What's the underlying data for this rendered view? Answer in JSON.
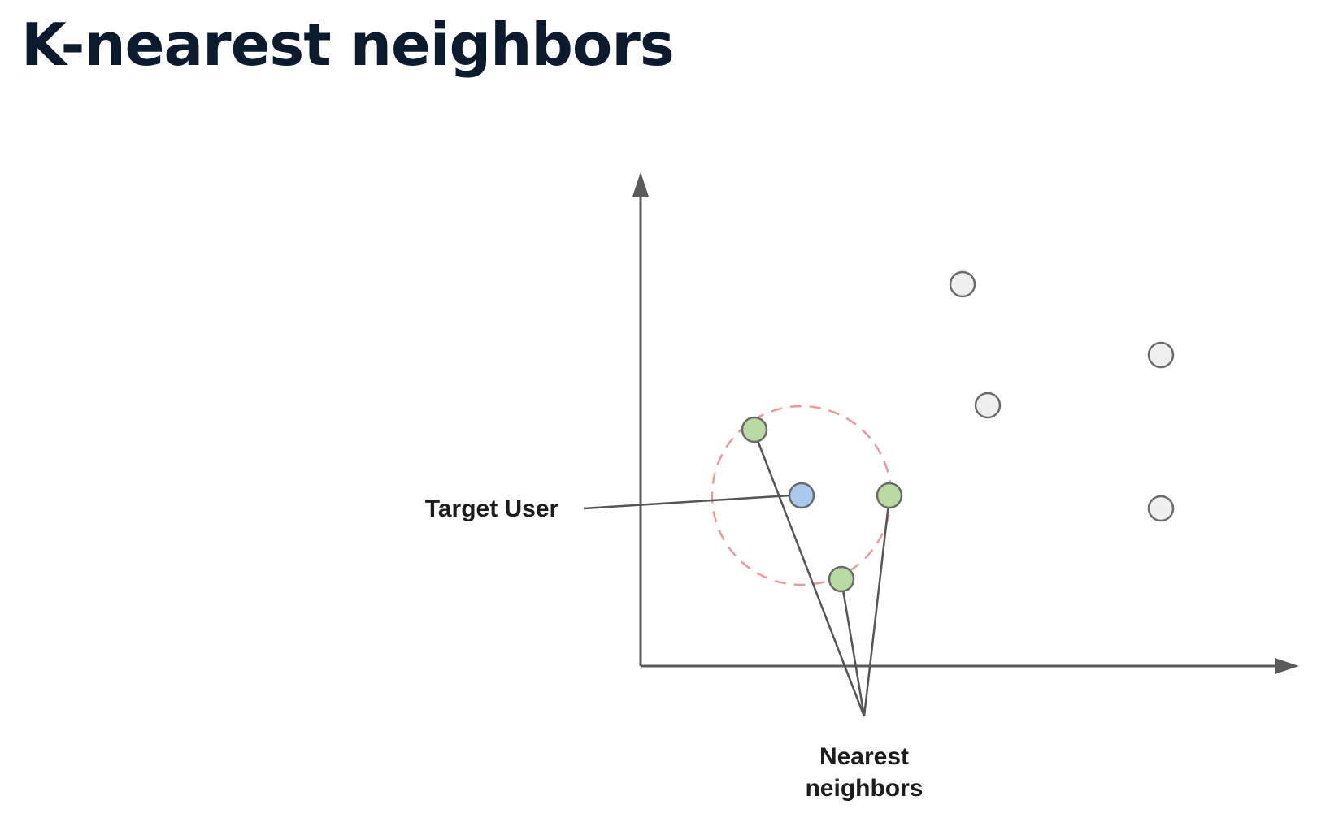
{
  "title": "K-nearest neighbors",
  "diagram": {
    "target_label": "Target User",
    "neighbors_label_line1": "Nearest",
    "neighbors_label_line2": "neighbors",
    "colors": {
      "title": "#0b1a2c",
      "axis": "#5a5a5a",
      "radius_circle": "#e89a9a",
      "target_fill": "#a9c9ee",
      "neighbor_fill": "#b9dba3",
      "other_fill": "#efefef",
      "point_stroke": "#6b6b6b"
    }
  }
}
